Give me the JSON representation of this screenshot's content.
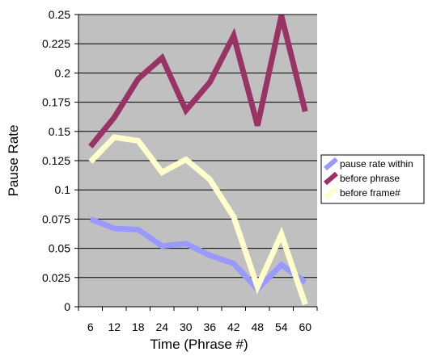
{
  "chart_data": {
    "type": "line",
    "xlabel": "Time (Phrase #)",
    "ylabel": "Pause Rate",
    "categories": [
      "6",
      "12",
      "18",
      "24",
      "30",
      "36",
      "42",
      "48",
      "54",
      "60"
    ],
    "ylim": [
      0,
      0.25
    ],
    "yticks": [
      "0",
      "0.025",
      "0.05",
      "0.075",
      "0.1",
      "0.125",
      "0.15",
      "0.175",
      "0.2",
      "0.225",
      "0.25"
    ],
    "grid": "horizontal",
    "legend_position": "right",
    "series": [
      {
        "name": "pause rate within",
        "color": "#9999ff",
        "values": [
          0.075,
          0.067,
          0.066,
          0.052,
          0.054,
          0.044,
          0.037,
          0.015,
          0.036,
          0.021
        ]
      },
      {
        "name": "before phrase",
        "color": "#993366",
        "values": [
          0.137,
          0.162,
          0.195,
          0.213,
          0.168,
          0.192,
          0.232,
          0.155,
          0.249,
          0.167
        ]
      },
      {
        "name": "before frame#",
        "color": "#ffffcc",
        "values": [
          0.124,
          0.145,
          0.142,
          0.115,
          0.126,
          0.109,
          0.077,
          0.017,
          0.062,
          0.002
        ]
      }
    ],
    "colors": {
      "plot_background": "#c0c0c0",
      "gridline": "#000000"
    }
  }
}
